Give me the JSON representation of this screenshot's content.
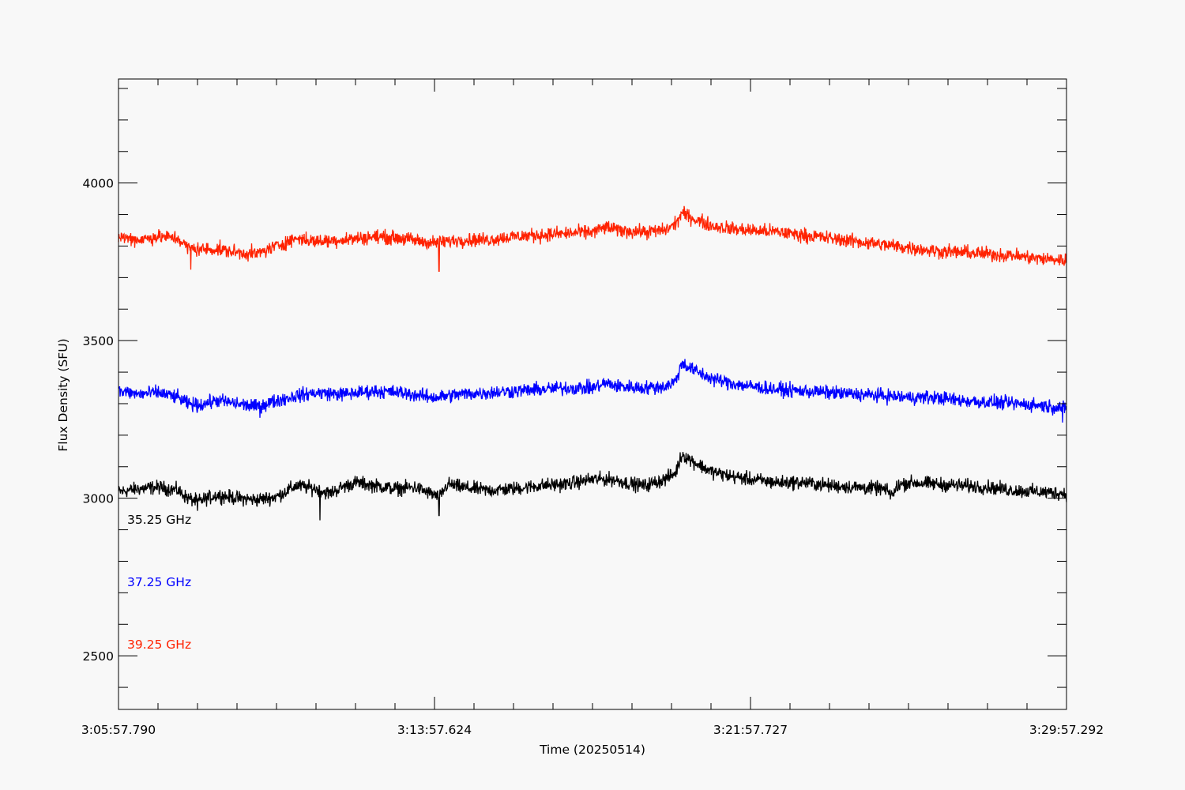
{
  "chart_data": {
    "type": "line",
    "xlabel": "Time (20250514)",
    "ylabel": "Flux Density (SFU)",
    "x_min_seconds": 0,
    "x_max_seconds": 1440,
    "x_tick_labels": [
      {
        "seconds": 0,
        "label": "3:05:57.790"
      },
      {
        "seconds": 480,
        "label": "3:13:57.624"
      },
      {
        "seconds": 960,
        "label": "3:21:57.727"
      },
      {
        "seconds": 1440,
        "label": "3:29:57.292"
      }
    ],
    "ylim": [
      2330,
      4330
    ],
    "y_major_ticks": [
      2500,
      3000,
      3500,
      4000
    ],
    "y_minor_step": 100,
    "series": [
      {
        "name": "35.25 GHz",
        "color": "#000000",
        "points": [
          [
            0,
            3020
          ],
          [
            30,
            3030
          ],
          [
            60,
            3035
          ],
          [
            90,
            3025
          ],
          [
            105,
            3000
          ],
          [
            120,
            2990
          ],
          [
            150,
            3010
          ],
          [
            180,
            3000
          ],
          [
            210,
            2995
          ],
          [
            240,
            3005
          ],
          [
            270,
            3040
          ],
          [
            300,
            3030
          ],
          [
            320,
            3015
          ],
          [
            340,
            3035
          ],
          [
            360,
            3050
          ],
          [
            390,
            3040
          ],
          [
            420,
            3030
          ],
          [
            450,
            3035
          ],
          [
            480,
            3010
          ],
          [
            487,
            3000
          ],
          [
            500,
            3045
          ],
          [
            520,
            3035
          ],
          [
            560,
            3025
          ],
          [
            600,
            3030
          ],
          [
            640,
            3040
          ],
          [
            680,
            3045
          ],
          [
            720,
            3060
          ],
          [
            750,
            3060
          ],
          [
            780,
            3045
          ],
          [
            800,
            3040
          ],
          [
            830,
            3060
          ],
          [
            846,
            3080
          ],
          [
            856,
            3140
          ],
          [
            870,
            3120
          ],
          [
            900,
            3085
          ],
          [
            930,
            3070
          ],
          [
            960,
            3060
          ],
          [
            1000,
            3050
          ],
          [
            1040,
            3050
          ],
          [
            1080,
            3040
          ],
          [
            1120,
            3035
          ],
          [
            1160,
            3030
          ],
          [
            1178,
            3010
          ],
          [
            1182,
            3040
          ],
          [
            1200,
            3050
          ],
          [
            1240,
            3045
          ],
          [
            1280,
            3040
          ],
          [
            1320,
            3035
          ],
          [
            1360,
            3025
          ],
          [
            1400,
            3020
          ],
          [
            1440,
            3015
          ]
        ],
        "spikes": [
          [
            306,
            2930
          ],
          [
            487,
            2945
          ],
          [
            120,
            2960
          ]
        ]
      },
      {
        "name": "37.25 GHz",
        "color": "#0000ff",
        "points": [
          [
            0,
            3340
          ],
          [
            30,
            3330
          ],
          [
            60,
            3335
          ],
          [
            90,
            3320
          ],
          [
            105,
            3300
          ],
          [
            120,
            3295
          ],
          [
            150,
            3310
          ],
          [
            180,
            3300
          ],
          [
            210,
            3290
          ],
          [
            240,
            3310
          ],
          [
            270,
            3325
          ],
          [
            300,
            3335
          ],
          [
            340,
            3330
          ],
          [
            390,
            3340
          ],
          [
            430,
            3335
          ],
          [
            460,
            3325
          ],
          [
            480,
            3320
          ],
          [
            520,
            3330
          ],
          [
            560,
            3335
          ],
          [
            600,
            3340
          ],
          [
            640,
            3345
          ],
          [
            680,
            3350
          ],
          [
            720,
            3350
          ],
          [
            740,
            3365
          ],
          [
            760,
            3355
          ],
          [
            800,
            3350
          ],
          [
            830,
            3355
          ],
          [
            846,
            3370
          ],
          [
            856,
            3430
          ],
          [
            870,
            3410
          ],
          [
            900,
            3380
          ],
          [
            930,
            3365
          ],
          [
            960,
            3355
          ],
          [
            1000,
            3345
          ],
          [
            1040,
            3340
          ],
          [
            1080,
            3335
          ],
          [
            1120,
            3330
          ],
          [
            1160,
            3325
          ],
          [
            1200,
            3320
          ],
          [
            1240,
            3320
          ],
          [
            1280,
            3310
          ],
          [
            1320,
            3305
          ],
          [
            1360,
            3300
          ],
          [
            1400,
            3295
          ],
          [
            1440,
            3285
          ]
        ],
        "spikes": [
          [
            1434,
            3240
          ],
          [
            215,
            3255
          ]
        ]
      },
      {
        "name": "39.25 GHz",
        "color": "#ff2200",
        "points": [
          [
            0,
            3830
          ],
          [
            30,
            3820
          ],
          [
            60,
            3830
          ],
          [
            90,
            3825
          ],
          [
            105,
            3795
          ],
          [
            120,
            3790
          ],
          [
            150,
            3790
          ],
          [
            180,
            3780
          ],
          [
            210,
            3775
          ],
          [
            240,
            3800
          ],
          [
            270,
            3825
          ],
          [
            300,
            3815
          ],
          [
            340,
            3820
          ],
          [
            390,
            3830
          ],
          [
            430,
            3825
          ],
          [
            460,
            3815
          ],
          [
            480,
            3810
          ],
          [
            520,
            3820
          ],
          [
            560,
            3820
          ],
          [
            600,
            3830
          ],
          [
            640,
            3835
          ],
          [
            680,
            3840
          ],
          [
            720,
            3845
          ],
          [
            740,
            3860
          ],
          [
            760,
            3850
          ],
          [
            800,
            3845
          ],
          [
            830,
            3850
          ],
          [
            846,
            3870
          ],
          [
            856,
            3905
          ],
          [
            870,
            3890
          ],
          [
            900,
            3865
          ],
          [
            930,
            3855
          ],
          [
            960,
            3850
          ],
          [
            1000,
            3845
          ],
          [
            1040,
            3835
          ],
          [
            1080,
            3825
          ],
          [
            1120,
            3815
          ],
          [
            1160,
            3805
          ],
          [
            1200,
            3795
          ],
          [
            1240,
            3785
          ],
          [
            1280,
            3780
          ],
          [
            1320,
            3775
          ],
          [
            1360,
            3770
          ],
          [
            1400,
            3760
          ],
          [
            1440,
            3755
          ]
        ],
        "spikes": [
          [
            487,
            3720
          ],
          [
            110,
            3725
          ]
        ]
      }
    ],
    "legend_placement": "bottom-left",
    "grid": false
  }
}
